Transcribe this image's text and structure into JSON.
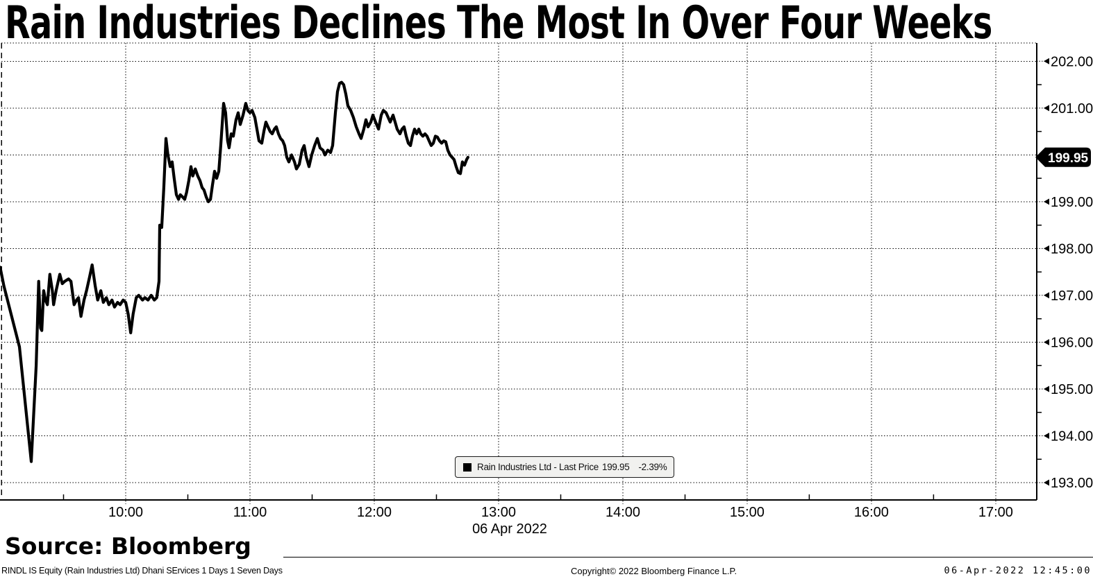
{
  "title": "Rain Industries Declines The Most In Over Four Weeks",
  "source": "Source: Bloomberg",
  "footer": {
    "left": "RINDL IS Equity (Rain Industries Ltd) Dhani SErvices 1 Days 1 Seven Days",
    "center": "Copyright© 2022 Bloomberg Finance L.P.",
    "right": "06-Apr-2022 12:45:00"
  },
  "legend": {
    "marker": "black-square",
    "marker_color": "#000000",
    "label": "Rain Industries Ltd - Last Price",
    "price": "199.95",
    "change": "-2.39%"
  },
  "chart_data": {
    "type": "line",
    "title": "Rain Industries Declines The Most In Over Four Weeks",
    "line_color": "#000000",
    "background": "#ffffff",
    "grid": "dotted",
    "legend_position": "inside-bottom-center",
    "x_axis": {
      "kind": "intraday-time",
      "date_label": "06 Apr 2022",
      "range_hours": [
        9.0,
        17.33
      ],
      "ticks": [
        {
          "value": 10,
          "label": "10:00"
        },
        {
          "value": 11,
          "label": "11:00"
        },
        {
          "value": 12,
          "label": "12:00"
        },
        {
          "value": 13,
          "label": "13:00"
        },
        {
          "value": 14,
          "label": "14:00"
        },
        {
          "value": 15,
          "label": "15:00"
        },
        {
          "value": 16,
          "label": "16:00"
        },
        {
          "value": 17,
          "label": "17:00"
        }
      ],
      "minor_ticks": [
        9.5,
        10.5,
        11.5,
        12.5,
        13.5,
        14.5,
        15.5,
        16.5
      ]
    },
    "y_axis": {
      "side": "right",
      "range": [
        192.63,
        202.39
      ],
      "gridlines": [
        193,
        194,
        195,
        196,
        197,
        198,
        199,
        200,
        201,
        202
      ],
      "ticks": [
        {
          "value": 202,
          "label": "202.00"
        },
        {
          "value": 201,
          "label": "201.00"
        },
        {
          "value": 199,
          "label": "199.00"
        },
        {
          "value": 198,
          "label": "198.00"
        },
        {
          "value": 197,
          "label": "197.00"
        },
        {
          "value": 196,
          "label": "196.00"
        },
        {
          "value": 195,
          "label": "195.00"
        },
        {
          "value": 194,
          "label": "194.00"
        },
        {
          "value": 193,
          "label": "193.00"
        }
      ],
      "minor_ticks": [
        193.5,
        194.5,
        195.5,
        196.5,
        197.5,
        198.5,
        199.5,
        200.5,
        201.5
      ]
    },
    "last_price_tag": {
      "value": 199.95,
      "label": "199.95",
      "bg": "#000000",
      "fg": "#ffffff"
    },
    "series": [
      {
        "name": "Rain Industries Ltd - Last Price",
        "last_price": 199.95,
        "change_pct": "-2.39%",
        "points": [
          [
            8.99,
            197.6
          ],
          [
            9.02,
            197.2
          ],
          [
            9.145,
            195.9
          ],
          [
            9.24,
            193.45
          ],
          [
            9.28,
            195.5
          ],
          [
            9.3,
            197.3
          ],
          [
            9.315,
            196.3
          ],
          [
            9.325,
            196.25
          ],
          [
            9.34,
            197.1
          ],
          [
            9.355,
            196.9
          ],
          [
            9.37,
            196.8
          ],
          [
            9.39,
            197.45
          ],
          [
            9.41,
            197.1
          ],
          [
            9.42,
            196.8
          ],
          [
            9.44,
            197.1
          ],
          [
            9.47,
            197.45
          ],
          [
            9.49,
            197.25
          ],
          [
            9.51,
            197.3
          ],
          [
            9.54,
            197.35
          ],
          [
            9.56,
            197.3
          ],
          [
            9.585,
            196.8
          ],
          [
            9.605,
            196.9
          ],
          [
            9.62,
            196.95
          ],
          [
            9.64,
            196.55
          ],
          [
            9.665,
            196.9
          ],
          [
            9.685,
            197.1
          ],
          [
            9.71,
            197.4
          ],
          [
            9.73,
            197.65
          ],
          [
            9.755,
            197.2
          ],
          [
            9.775,
            196.9
          ],
          [
            9.8,
            197.1
          ],
          [
            9.82,
            196.85
          ],
          [
            9.845,
            196.95
          ],
          [
            9.865,
            196.8
          ],
          [
            9.89,
            196.9
          ],
          [
            9.91,
            196.75
          ],
          [
            9.935,
            196.85
          ],
          [
            9.955,
            196.8
          ],
          [
            9.98,
            196.9
          ],
          [
            10.0,
            196.85
          ],
          [
            10.02,
            196.6
          ],
          [
            10.04,
            196.2
          ],
          [
            10.06,
            196.6
          ],
          [
            10.085,
            196.95
          ],
          [
            10.105,
            197.0
          ],
          [
            10.135,
            196.9
          ],
          [
            10.155,
            196.95
          ],
          [
            10.18,
            196.9
          ],
          [
            10.205,
            197.0
          ],
          [
            10.23,
            196.9
          ],
          [
            10.25,
            196.95
          ],
          [
            10.268,
            197.3
          ],
          [
            10.274,
            198.5
          ],
          [
            10.29,
            198.45
          ],
          [
            10.307,
            199.3
          ],
          [
            10.324,
            200.35
          ],
          [
            10.34,
            200.0
          ],
          [
            10.358,
            199.75
          ],
          [
            10.374,
            199.85
          ],
          [
            10.39,
            199.5
          ],
          [
            10.408,
            199.15
          ],
          [
            10.425,
            199.05
          ],
          [
            10.44,
            199.15
          ],
          [
            10.458,
            199.1
          ],
          [
            10.475,
            199.05
          ],
          [
            10.49,
            199.2
          ],
          [
            10.508,
            199.45
          ],
          [
            10.525,
            199.75
          ],
          [
            10.54,
            199.55
          ],
          [
            10.56,
            199.7
          ],
          [
            10.58,
            199.55
          ],
          [
            10.598,
            199.45
          ],
          [
            10.615,
            199.3
          ],
          [
            10.63,
            199.25
          ],
          [
            10.648,
            199.1
          ],
          [
            10.665,
            199.0
          ],
          [
            10.682,
            199.05
          ],
          [
            10.698,
            199.35
          ],
          [
            10.715,
            199.65
          ],
          [
            10.732,
            199.5
          ],
          [
            10.749,
            199.65
          ],
          [
            10.765,
            200.2
          ],
          [
            10.788,
            201.1
          ],
          [
            10.804,
            200.9
          ],
          [
            10.82,
            200.3
          ],
          [
            10.832,
            200.15
          ],
          [
            10.849,
            200.45
          ],
          [
            10.866,
            200.4
          ],
          [
            10.888,
            200.75
          ],
          [
            10.905,
            200.9
          ],
          [
            10.922,
            200.65
          ],
          [
            10.944,
            200.85
          ],
          [
            10.966,
            201.1
          ],
          [
            10.983,
            200.95
          ],
          [
            11.0,
            200.9
          ],
          [
            11.017,
            200.95
          ],
          [
            11.039,
            200.8
          ],
          [
            11.056,
            200.55
          ],
          [
            11.073,
            200.3
          ],
          [
            11.095,
            200.25
          ],
          [
            11.112,
            200.5
          ],
          [
            11.128,
            200.7
          ],
          [
            11.145,
            200.6
          ],
          [
            11.162,
            200.5
          ],
          [
            11.179,
            200.45
          ],
          [
            11.196,
            200.55
          ],
          [
            11.212,
            200.6
          ],
          [
            11.229,
            200.45
          ],
          [
            11.246,
            200.35
          ],
          [
            11.263,
            200.3
          ],
          [
            11.279,
            200.2
          ],
          [
            11.296,
            199.95
          ],
          [
            11.313,
            199.85
          ],
          [
            11.335,
            200.0
          ],
          [
            11.358,
            199.85
          ],
          [
            11.374,
            199.7
          ],
          [
            11.397,
            199.8
          ],
          [
            11.419,
            200.1
          ],
          [
            11.436,
            200.2
          ],
          [
            11.453,
            199.95
          ],
          [
            11.475,
            199.75
          ],
          [
            11.497,
            200.0
          ],
          [
            11.52,
            200.2
          ],
          [
            11.542,
            200.35
          ],
          [
            11.564,
            200.15
          ],
          [
            11.587,
            200.1
          ],
          [
            11.603,
            200.0
          ],
          [
            11.626,
            200.1
          ],
          [
            11.648,
            200.05
          ],
          [
            11.665,
            200.2
          ],
          [
            11.687,
            200.9
          ],
          [
            11.704,
            201.35
          ],
          [
            11.721,
            201.53
          ],
          [
            11.737,
            201.55
          ],
          [
            11.754,
            201.5
          ],
          [
            11.771,
            201.3
          ],
          [
            11.788,
            201.05
          ],
          [
            11.81,
            200.95
          ],
          [
            11.832,
            200.8
          ],
          [
            11.855,
            200.6
          ],
          [
            11.877,
            200.45
          ],
          [
            11.894,
            200.35
          ],
          [
            11.916,
            200.55
          ],
          [
            11.933,
            200.75
          ],
          [
            11.95,
            200.6
          ],
          [
            11.972,
            200.7
          ],
          [
            11.989,
            200.85
          ],
          [
            12.011,
            200.7
          ],
          [
            12.034,
            200.55
          ],
          [
            12.056,
            200.85
          ],
          [
            12.073,
            200.95
          ],
          [
            12.095,
            200.9
          ],
          [
            12.112,
            200.8
          ],
          [
            12.128,
            200.7
          ],
          [
            12.151,
            200.85
          ],
          [
            12.168,
            200.7
          ],
          [
            12.184,
            200.55
          ],
          [
            12.207,
            200.45
          ],
          [
            12.223,
            200.55
          ],
          [
            12.24,
            200.6
          ],
          [
            12.257,
            200.4
          ],
          [
            12.274,
            200.25
          ],
          [
            12.291,
            200.2
          ],
          [
            12.307,
            200.4
          ],
          [
            12.324,
            200.55
          ],
          [
            12.341,
            200.45
          ],
          [
            12.358,
            200.55
          ],
          [
            12.374,
            200.45
          ],
          [
            12.391,
            200.4
          ],
          [
            12.408,
            200.45
          ],
          [
            12.425,
            200.4
          ],
          [
            12.441,
            200.3
          ],
          [
            12.458,
            200.2
          ],
          [
            12.475,
            200.25
          ],
          [
            12.492,
            200.4
          ],
          [
            12.508,
            200.38
          ],
          [
            12.525,
            200.3
          ],
          [
            12.542,
            200.25
          ],
          [
            12.559,
            200.3
          ],
          [
            12.575,
            200.28
          ],
          [
            12.592,
            200.1
          ],
          [
            12.609,
            200.0
          ],
          [
            12.626,
            199.95
          ],
          [
            12.642,
            199.9
          ],
          [
            12.659,
            199.75
          ],
          [
            12.676,
            199.62
          ],
          [
            12.693,
            199.6
          ],
          [
            12.709,
            199.85
          ],
          [
            12.726,
            199.78
          ],
          [
            12.743,
            199.9
          ],
          [
            12.754,
            199.95
          ]
        ]
      }
    ]
  }
}
